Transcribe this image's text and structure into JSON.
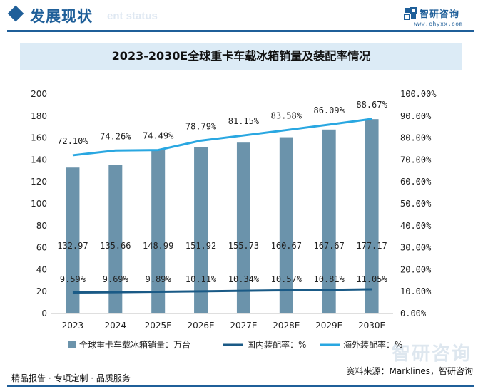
{
  "header": {
    "title": "发展现状",
    "ghost_text": "ent status",
    "logo_name": "智研咨询",
    "logo_url": "www.chyxx.com"
  },
  "chart_data": {
    "type": "bar",
    "title": "2023-2030E全球重卡车载冰箱销量及装配率情况",
    "categories": [
      "2023",
      "2024",
      "2025E",
      "2026E",
      "2027E",
      "2028E",
      "2029E",
      "2030E"
    ],
    "series": [
      {
        "name": "全球重卡车载冰箱销量：万台",
        "type": "bar",
        "axis": "left",
        "values": [
          132.97,
          135.66,
          148.99,
          151.92,
          155.73,
          160.67,
          167.67,
          177.17
        ],
        "labels": [
          "132.97",
          "135.66",
          "148.99",
          "151.92",
          "155.73",
          "160.67",
          "167.67",
          "177.17"
        ],
        "color": "#6b93ab"
      },
      {
        "name": "国内装配率：%",
        "type": "line",
        "axis": "right",
        "values": [
          9.59,
          9.69,
          9.89,
          10.11,
          10.34,
          10.57,
          10.81,
          11.05
        ],
        "labels": [
          "9.59%",
          "9.69%",
          "9.89%",
          "10.11%",
          "10.34%",
          "10.57%",
          "10.81%",
          "11.05%"
        ],
        "color": "#1a5a86"
      },
      {
        "name": "海外装配率：%",
        "type": "line",
        "axis": "right",
        "values": [
          72.1,
          74.26,
          74.49,
          78.79,
          81.15,
          83.58,
          86.09,
          88.67
        ],
        "labels": [
          "72.10%",
          "74.26%",
          "74.49%",
          "78.79%",
          "81.15%",
          "83.58%",
          "86.09%",
          "88.67%"
        ],
        "color": "#29a7e1"
      }
    ],
    "y_left": {
      "min": 0,
      "max": 200,
      "ticks": [
        "0",
        "20",
        "40",
        "60",
        "80",
        "100",
        "120",
        "140",
        "160",
        "180",
        "200"
      ]
    },
    "y_right": {
      "min": 0,
      "max": 100,
      "ticks": [
        "0.00%",
        "10.00%",
        "20.00%",
        "30.00%",
        "40.00%",
        "50.00%",
        "60.00%",
        "70.00%",
        "80.00%",
        "90.00%",
        "100.00%"
      ]
    },
    "legend_position": "bottom"
  },
  "footer": {
    "left": "精品报告 · 专项定制 · 品质服务",
    "right": "资料来源：Marklines，智研咨询",
    "watermark": "智研咨询"
  }
}
